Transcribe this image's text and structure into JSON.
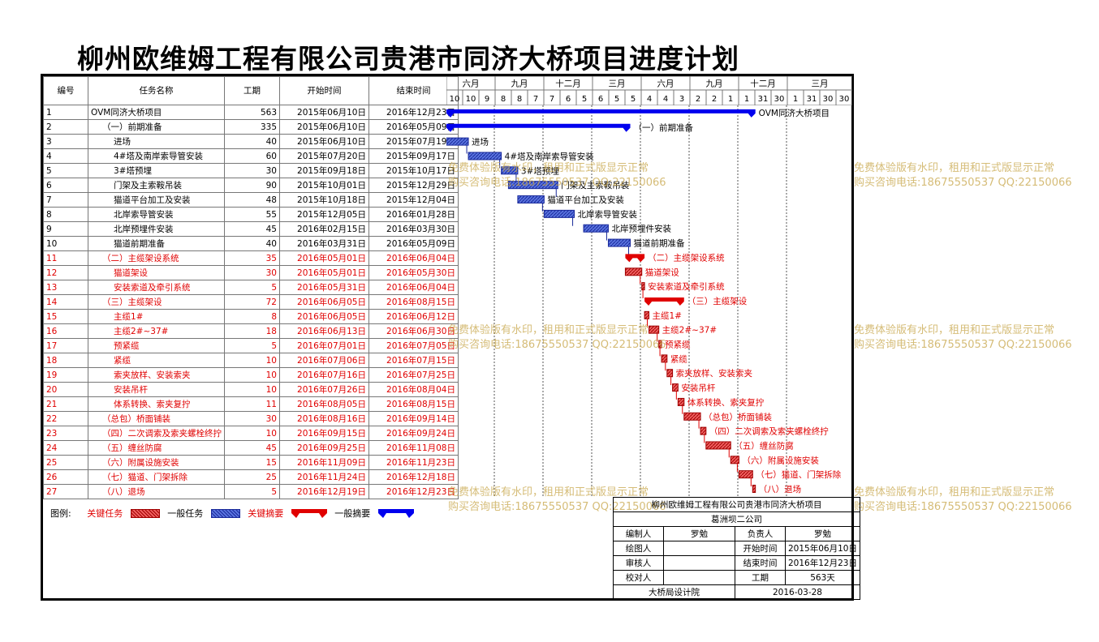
{
  "title": "柳州欧维姆工程有限公司贵港市同济大桥项目进度计划",
  "table": {
    "headers": [
      "编号",
      "任务名称",
      "工期",
      "开始时间",
      "结束时间"
    ],
    "rows": [
      {
        "id": "1",
        "name": "OVM同济大桥项目",
        "dur": "563",
        "start": "2015年06月10日",
        "end": "2016年12月23日",
        "crit": false,
        "indent": 0
      },
      {
        "id": "2",
        "name": "（一）前期准备",
        "dur": "335",
        "start": "2015年06月10日",
        "end": "2016年05月09日",
        "crit": false,
        "indent": 1
      },
      {
        "id": "3",
        "name": "进场",
        "dur": "40",
        "start": "2015年06月10日",
        "end": "2015年07月19日",
        "crit": false,
        "indent": 2
      },
      {
        "id": "4",
        "name": "4#塔及南岸索导管安装",
        "dur": "60",
        "start": "2015年07月20日",
        "end": "2015年09月17日",
        "crit": false,
        "indent": 2
      },
      {
        "id": "5",
        "name": "3#塔预埋",
        "dur": "30",
        "start": "2015年09月18日",
        "end": "2015年10月17日",
        "crit": false,
        "indent": 2
      },
      {
        "id": "6",
        "name": "门架及主索鞍吊装",
        "dur": "90",
        "start": "2015年10月01日",
        "end": "2015年12月29日",
        "crit": false,
        "indent": 2
      },
      {
        "id": "7",
        "name": "猫道平台加工及安装",
        "dur": "48",
        "start": "2015年10月18日",
        "end": "2015年12月04日",
        "crit": false,
        "indent": 2
      },
      {
        "id": "8",
        "name": "北岸索导管安装",
        "dur": "55",
        "start": "2015年12月05日",
        "end": "2016年01月28日",
        "crit": false,
        "indent": 2
      },
      {
        "id": "9",
        "name": "北岸预埋件安装",
        "dur": "45",
        "start": "2016年02月15日",
        "end": "2016年03月30日",
        "crit": false,
        "indent": 2
      },
      {
        "id": "10",
        "name": "猫道前期准备",
        "dur": "40",
        "start": "2016年03月31日",
        "end": "2016年05月09日",
        "crit": false,
        "indent": 2
      },
      {
        "id": "11",
        "name": "（二）主缆架设系统",
        "dur": "35",
        "start": "2016年05月01日",
        "end": "2016年06月04日",
        "crit": true,
        "indent": 1
      },
      {
        "id": "12",
        "name": "猫道架设",
        "dur": "30",
        "start": "2016年05月01日",
        "end": "2016年05月30日",
        "crit": true,
        "indent": 2
      },
      {
        "id": "13",
        "name": "安装索道及牵引系统",
        "dur": "5",
        "start": "2016年05月31日",
        "end": "2016年06月04日",
        "crit": true,
        "indent": 2
      },
      {
        "id": "14",
        "name": "（三）主缆架设",
        "dur": "72",
        "start": "2016年06月05日",
        "end": "2016年08月15日",
        "crit": true,
        "indent": 1
      },
      {
        "id": "15",
        "name": "主缆1#",
        "dur": "8",
        "start": "2016年06月05日",
        "end": "2016年06月12日",
        "crit": true,
        "indent": 2
      },
      {
        "id": "16",
        "name": "主缆2#~37#",
        "dur": "18",
        "start": "2016年06月13日",
        "end": "2016年06月30日",
        "crit": true,
        "indent": 2
      },
      {
        "id": "17",
        "name": "预紧缆",
        "dur": "5",
        "start": "2016年07月01日",
        "end": "2016年07月05日",
        "crit": true,
        "indent": 2
      },
      {
        "id": "18",
        "name": "紧缆",
        "dur": "10",
        "start": "2016年07月06日",
        "end": "2016年07月15日",
        "crit": true,
        "indent": 2
      },
      {
        "id": "19",
        "name": "索夹放样、安装索夹",
        "dur": "10",
        "start": "2016年07月16日",
        "end": "2016年07月25日",
        "crit": true,
        "indent": 2
      },
      {
        "id": "20",
        "name": "安装吊杆",
        "dur": "10",
        "start": "2016年07月26日",
        "end": "2016年08月04日",
        "crit": true,
        "indent": 2
      },
      {
        "id": "21",
        "name": "体系转换、索夹复拧",
        "dur": "11",
        "start": "2016年08月05日",
        "end": "2016年08月15日",
        "crit": true,
        "indent": 2
      },
      {
        "id": "22",
        "name": "（总包）桥面铺装",
        "dur": "30",
        "start": "2016年08月16日",
        "end": "2016年09月14日",
        "crit": true,
        "indent": 1
      },
      {
        "id": "23",
        "name": "（四）二次调索及索夹螺栓终拧",
        "dur": "10",
        "start": "2016年09月15日",
        "end": "2016年09月24日",
        "crit": true,
        "indent": 1
      },
      {
        "id": "24",
        "name": "（五）缠丝防腐",
        "dur": "45",
        "start": "2016年09月25日",
        "end": "2016年11月08日",
        "crit": true,
        "indent": 1
      },
      {
        "id": "25",
        "name": "（六）附属设施安装",
        "dur": "15",
        "start": "2016年11月09日",
        "end": "2016年11月23日",
        "crit": true,
        "indent": 1
      },
      {
        "id": "26",
        "name": "（七）猫道、门架拆除",
        "dur": "25",
        "start": "2016年11月24日",
        "end": "2016年12月18日",
        "crit": true,
        "indent": 1
      },
      {
        "id": "27",
        "name": "（八）退场",
        "dur": "5",
        "start": "2016年12月19日",
        "end": "2016年12月23日",
        "crit": true,
        "indent": 1
      }
    ]
  },
  "timeline": {
    "months": [
      "六月",
      "九月",
      "十二月",
      "三月",
      "六月",
      "九月",
      "十二月",
      "三月"
    ],
    "days": [
      "10",
      "10",
      "9",
      "8",
      "8",
      "7",
      "7",
      "6",
      "5",
      "6",
      "5",
      "5",
      "4",
      "4",
      "3",
      "2",
      "2",
      "1",
      "1",
      "31",
      "30",
      "1",
      "31",
      "30",
      "30"
    ]
  },
  "gantt_labels": [
    "OVM同济大桥项目",
    "（一）前期准备",
    "进场",
    "4#塔及南岸索导管安装",
    "3#塔预埋",
    "门架及主索鞍吊装",
    "猫道平台加工及安装",
    "北岸索导管安装",
    "北岸预埋件安装",
    "猫道前期准备",
    "（二）主缆架设系统",
    "猫道架设",
    "安装索道及牵引系统",
    "（三）主缆架设",
    "主缆1#",
    "主缆2#~37#",
    "预紧缆",
    "紧缆",
    "索夹放样、安装索夹",
    "安装吊杆",
    "体系转换、索夹复拧",
    "（总包）桥面铺装",
    "（四）二次调索及索夹螺栓终拧",
    "（五）缠丝防腐",
    "（六）附属设施安装",
    "（七）猫道、门架拆除",
    "（八）退场"
  ],
  "watermark": {
    "line1": "免费体验版有水印，租用和正式版显示正常",
    "line2": "购买咨询电话:18675550537 QQ:22150066"
  },
  "legend": {
    "label": "图例:",
    "crit_task": "关键任务",
    "normal_task": "一般任务",
    "crit_summary": "关键摘要",
    "normal_summary": "一般摘要"
  },
  "info": {
    "project": "柳州欧维姆工程有限公司贵港市同济大桥项目",
    "company": "葛洲坝二公司",
    "editor_label": "编制人",
    "editor": "罗勉",
    "owner_label": "负责人",
    "owner": "罗勉",
    "drawer_label": "绘图人",
    "start_label": "开始时间",
    "start": "2015年06月10日",
    "reviewer_label": "审核人",
    "end_label": "结束时间",
    "end": "2016年12月23日",
    "checker_label": "校对人",
    "dur_label": "工期",
    "dur": "563天",
    "institute": "大桥局设计院",
    "date": "2016-03-28"
  },
  "colors": {
    "critical": "#e00000",
    "normal": "#1a3ec8",
    "summary_blue": "#0000ee",
    "watermark": "#c8a64a"
  }
}
